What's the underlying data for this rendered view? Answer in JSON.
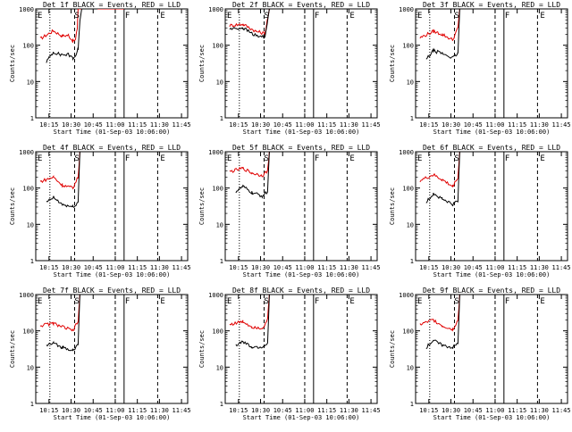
{
  "colors": {
    "events": "#000000",
    "lld": "#e00000",
    "background": "#ffffff"
  },
  "chart_data": [
    {
      "type": "line",
      "title": "Det 1f BLACK = Events, RED = LLD",
      "xlabel": "Start Time (01-Sep-03 10:06:00)",
      "ylabel": "Counts/sec",
      "yscale": "log",
      "ylim": [
        1,
        1000
      ],
      "yticks": [
        "1",
        "10",
        "100",
        "1000"
      ],
      "xlim": [
        10.1,
        11.82
      ],
      "xticks": [
        "10:15",
        "10:30",
        "10:45",
        "11:00",
        "11:15",
        "11:30",
        "11:45"
      ],
      "markers": [
        "E",
        "S",
        "F",
        "E"
      ],
      "series": [
        {
          "name": "Events",
          "color": "#000000",
          "x": [
            10.22,
            10.3,
            10.38,
            10.47,
            10.52,
            10.55,
            10.57,
            10.58,
            10.6,
            10.62,
            10.63,
            10.65,
            10.72,
            10.8,
            10.9,
            10.95,
            11.1
          ],
          "y": [
            35,
            65,
            55,
            55,
            45,
            50,
            70,
            80,
            500,
            1000,
            1000,
            1000,
            1000,
            1000,
            null,
            null,
            null
          ]
        },
        {
          "name": "LLD",
          "color": "#e00000",
          "x": [
            10.15,
            10.3,
            10.4,
            10.47,
            10.52,
            10.55,
            10.57,
            10.58,
            10.6,
            10.62,
            10.65,
            10.72,
            10.8,
            10.9,
            11.0,
            11.1
          ],
          "y": [
            150,
            250,
            180,
            190,
            130,
            140,
            300,
            1000,
            1000,
            1000,
            1000,
            1000,
            1000,
            1000,
            1000,
            1000
          ]
        }
      ]
    },
    {
      "type": "line",
      "title": "Det 2f BLACK = Events, RED = LLD",
      "xlabel": "Start Time (01-Sep-03 10:06:00)",
      "ylabel": "Counts/sec",
      "yscale": "log",
      "ylim": [
        1,
        1000
      ],
      "yticks": [
        "1",
        "10",
        "100",
        "1000"
      ],
      "xlim": [
        10.1,
        11.82
      ],
      "xticks": [
        "10:15",
        "10:30",
        "10:45",
        "11:00",
        "11:15",
        "11:30",
        "11:45"
      ],
      "markers": [
        "E",
        "S",
        "F",
        "E"
      ],
      "series": [
        {
          "name": "Events",
          "color": "#000000",
          "x": [
            10.15,
            10.3,
            10.45,
            10.55,
            10.6,
            10.75,
            10.9,
            11.0,
            11.1
          ],
          "y": [
            280,
            300,
            180,
            170,
            1000,
            1000,
            1000,
            1000,
            1000
          ]
        },
        {
          "name": "LLD",
          "color": "#e00000",
          "x": [
            10.15,
            10.3,
            10.45,
            10.55,
            10.6,
            10.75,
            10.9,
            11.0,
            11.1
          ],
          "y": [
            350,
            380,
            240,
            210,
            1000,
            1000,
            1000,
            1000,
            1000
          ]
        }
      ]
    },
    {
      "type": "line",
      "title": "Det 3f BLACK = Events, RED = LLD",
      "xlabel": "Start Time (01-Sep-03 10:06:00)",
      "ylabel": "Counts/sec",
      "yscale": "log",
      "ylim": [
        1,
        1000
      ],
      "yticks": [
        "1",
        "10",
        "100",
        "1000"
      ],
      "xlim": [
        10.1,
        11.82
      ],
      "xticks": [
        "10:15",
        "10:30",
        "10:45",
        "11:00",
        "11:15",
        "11:30",
        "11:45"
      ],
      "markers": [
        "E",
        "S",
        "F",
        "E"
      ],
      "series": [
        {
          "name": "Events",
          "color": "#000000",
          "x": [
            10.22,
            10.3,
            10.4,
            10.52,
            10.58,
            10.6,
            10.65,
            10.8,
            11.0
          ],
          "y": [
            40,
            70,
            60,
            45,
            60,
            1000,
            1000,
            1000,
            1000
          ]
        },
        {
          "name": "LLD",
          "color": "#e00000",
          "x": [
            10.15,
            10.3,
            10.4,
            10.52,
            10.58,
            10.6,
            10.65,
            10.8,
            11.0
          ],
          "y": [
            160,
            240,
            200,
            140,
            300,
            1000,
            1000,
            1000,
            1000
          ]
        }
      ]
    },
    {
      "type": "line",
      "title": "Det 4f BLACK = Events, RED = LLD",
      "xlabel": "Start Time (01-Sep-03 10:06:00)",
      "ylabel": "Counts/sec",
      "yscale": "log",
      "ylim": [
        1,
        1000
      ],
      "yticks": [
        "1",
        "10",
        "100",
        "1000"
      ],
      "xlim": [
        10.1,
        11.82
      ],
      "xticks": [
        "10:15",
        "10:30",
        "10:45",
        "11:00",
        "11:15",
        "11:30",
        "11:45"
      ],
      "markers": [
        "E",
        "S",
        "F",
        "E"
      ],
      "series": [
        {
          "name": "Events",
          "color": "#000000",
          "x": [
            10.22,
            10.3,
            10.4,
            10.52,
            10.58,
            10.6,
            10.65,
            10.8,
            11.0
          ],
          "y": [
            40,
            55,
            35,
            30,
            40,
            1000,
            1000,
            1000,
            1000
          ]
        },
        {
          "name": "LLD",
          "color": "#e00000",
          "x": [
            10.15,
            10.3,
            10.4,
            10.52,
            10.58,
            10.6,
            10.65,
            10.8,
            11.0
          ],
          "y": [
            150,
            200,
            120,
            100,
            200,
            1000,
            1000,
            1000,
            1000
          ]
        }
      ]
    },
    {
      "type": "line",
      "title": "Det 5f BLACK = Events, RED = LLD",
      "xlabel": "Start Time (01-Sep-03 10:06:00)",
      "ylabel": "Counts/sec",
      "yscale": "log",
      "ylim": [
        1,
        1000
      ],
      "yticks": [
        "1",
        "10",
        "100",
        "1000"
      ],
      "xlim": [
        10.1,
        11.82
      ],
      "xticks": [
        "10:15",
        "10:30",
        "10:45",
        "11:00",
        "11:15",
        "11:30",
        "11:45"
      ],
      "markers": [
        "E",
        "S",
        "F",
        "E"
      ],
      "series": [
        {
          "name": "Events",
          "color": "#000000",
          "x": [
            10.22,
            10.3,
            10.4,
            10.52,
            10.58,
            10.6,
            10.65,
            10.8,
            11.0
          ],
          "y": [
            80,
            110,
            75,
            60,
            80,
            1000,
            1000,
            1000,
            1000
          ]
        },
        {
          "name": "LLD",
          "color": "#e00000",
          "x": [
            10.15,
            10.3,
            10.4,
            10.52,
            10.58,
            10.6,
            10.65,
            10.8,
            11.0
          ],
          "y": [
            280,
            350,
            260,
            220,
            300,
            1000,
            1000,
            1000,
            1000
          ]
        }
      ]
    },
    {
      "type": "line",
      "title": "Det 6f BLACK = Events, RED = LLD",
      "xlabel": "Start Time (01-Sep-03 10:06:00)",
      "ylabel": "Counts/sec",
      "yscale": "log",
      "ylim": [
        1,
        1000
      ],
      "yticks": [
        "1",
        "10",
        "100",
        "1000"
      ],
      "xlim": [
        10.1,
        11.82
      ],
      "xticks": [
        "10:15",
        "10:30",
        "10:45",
        "11:00",
        "11:15",
        "11:30",
        "11:45"
      ],
      "markers": [
        "E",
        "S",
        "F",
        "E"
      ],
      "series": [
        {
          "name": "Events",
          "color": "#000000",
          "x": [
            10.22,
            10.3,
            10.4,
            10.52,
            10.58,
            10.6,
            10.65,
            10.8,
            11.0
          ],
          "y": [
            40,
            70,
            50,
            35,
            45,
            1000,
            1000,
            1000,
            1000
          ]
        },
        {
          "name": "LLD",
          "color": "#e00000",
          "x": [
            10.15,
            10.3,
            10.4,
            10.52,
            10.58,
            10.6,
            10.65,
            10.8,
            11.0
          ],
          "y": [
            160,
            230,
            170,
            110,
            200,
            1000,
            1000,
            1000,
            1000
          ]
        }
      ]
    },
    {
      "type": "line",
      "title": "Det 7f BLACK = Events, RED = LLD",
      "xlabel": "Start Time (01-Sep-03 10:06:00)",
      "ylabel": "Counts/sec",
      "yscale": "log",
      "ylim": [
        1,
        1000
      ],
      "yticks": [
        "1",
        "10",
        "100",
        "1000"
      ],
      "xlim": [
        10.1,
        11.82
      ],
      "xticks": [
        "10:15",
        "10:30",
        "10:45",
        "11:00",
        "11:15",
        "11:30",
        "11:45"
      ],
      "markers": [
        "E",
        "S",
        "F",
        "E"
      ],
      "series": [
        {
          "name": "Events",
          "color": "#000000",
          "x": [
            10.22,
            10.3,
            10.4,
            10.52,
            10.58,
            10.6,
            10.65,
            10.8,
            11.0
          ],
          "y": [
            40,
            45,
            35,
            30,
            40,
            1000,
            1000,
            1000,
            1000
          ]
        },
        {
          "name": "LLD",
          "color": "#e00000",
          "x": [
            10.15,
            10.3,
            10.4,
            10.52,
            10.58,
            10.6,
            10.65,
            10.8,
            11.0
          ],
          "y": [
            140,
            160,
            130,
            100,
            180,
            1000,
            1000,
            1000,
            1000
          ]
        }
      ]
    },
    {
      "type": "line",
      "title": "Det 8f BLACK = Events, RED = LLD",
      "xlabel": "Start Time (01-Sep-03 10:06:00)",
      "ylabel": "Counts/sec",
      "yscale": "log",
      "ylim": [
        1,
        1000
      ],
      "yticks": [
        "1",
        "10",
        "100",
        "1000"
      ],
      "xlim": [
        10.1,
        11.82
      ],
      "xticks": [
        "10:15",
        "10:30",
        "10:45",
        "11:00",
        "11:15",
        "11:30",
        "11:45"
      ],
      "markers": [
        "E",
        "S",
        "F",
        "E"
      ],
      "series": [
        {
          "name": "Events",
          "color": "#000000",
          "x": [
            10.22,
            10.3,
            10.4,
            10.52,
            10.58,
            10.6,
            10.65,
            10.8,
            11.0
          ],
          "y": [
            40,
            50,
            35,
            35,
            45,
            1000,
            1000,
            1000,
            1000
          ]
        },
        {
          "name": "LLD",
          "color": "#e00000",
          "x": [
            10.15,
            10.3,
            10.4,
            10.52,
            10.58,
            10.6,
            10.65,
            10.8,
            11.0
          ],
          "y": [
            150,
            180,
            130,
            120,
            200,
            1000,
            1000,
            1000,
            1000
          ]
        }
      ]
    },
    {
      "type": "line",
      "title": "Det 9f BLACK = Events, RED = LLD",
      "xlabel": "Start Time (01-Sep-03 10:06:00)",
      "ylabel": "Counts/sec",
      "yscale": "log",
      "ylim": [
        1,
        1000
      ],
      "yticks": [
        "1",
        "10",
        "100",
        "1000"
      ],
      "xlim": [
        10.1,
        11.82
      ],
      "xticks": [
        "10:15",
        "10:30",
        "10:45",
        "11:00",
        "11:15",
        "11:30",
        "11:45"
      ],
      "markers": [
        "E",
        "S",
        "F",
        "E"
      ],
      "series": [
        {
          "name": "Events",
          "color": "#000000",
          "x": [
            10.22,
            10.3,
            10.4,
            10.52,
            10.58,
            10.6,
            10.65,
            10.8,
            11.0
          ],
          "y": [
            35,
            55,
            40,
            35,
            45,
            1000,
            1000,
            1000,
            1000
          ]
        },
        {
          "name": "LLD",
          "color": "#e00000",
          "x": [
            10.15,
            10.3,
            10.4,
            10.52,
            10.58,
            10.6,
            10.65,
            10.8,
            11.0
          ],
          "y": [
            150,
            200,
            140,
            110,
            200,
            1000,
            1000,
            1000,
            1000
          ]
        }
      ]
    }
  ]
}
